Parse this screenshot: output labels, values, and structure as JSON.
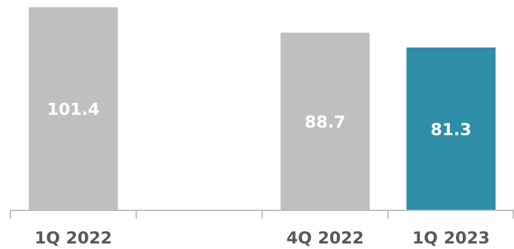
{
  "chart_data": {
    "type": "bar",
    "categories": [
      "1Q 2022",
      "",
      "4Q 2022",
      "1Q 2023"
    ],
    "values": [
      101.4,
      null,
      88.7,
      81.3
    ],
    "data_labels": [
      "101.4",
      "",
      "88.7",
      "81.3"
    ],
    "bar_colors": [
      "#bfbfbf",
      "#bfbfbf",
      "#bfbfbf",
      "#2e8ea8"
    ],
    "highlight_color": "#2e8ea8",
    "base_color": "#bfbfbf",
    "axis_color": "#bfbfbf",
    "label_color": "#595959",
    "title": "",
    "xlabel": "",
    "ylabel": "",
    "ylim": [
      0,
      105
    ],
    "grid": false,
    "legend": "none"
  }
}
